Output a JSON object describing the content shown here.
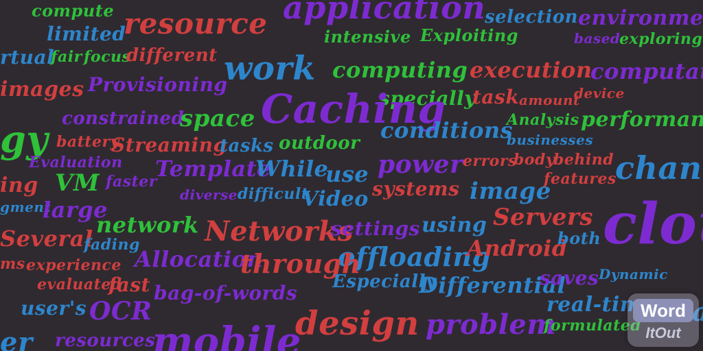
{
  "words": [
    {
      "text": "compute",
      "color": "green"
    },
    {
      "text": "resource",
      "color": "red"
    },
    {
      "text": "application",
      "color": "purple"
    },
    {
      "text": "selection",
      "color": "blue"
    },
    {
      "text": "environment",
      "color": "purple"
    },
    {
      "text": "limited",
      "color": "blue"
    },
    {
      "text": "intensive",
      "color": "green"
    },
    {
      "text": "Exploiting",
      "color": "green"
    },
    {
      "text": "based",
      "color": "purple"
    },
    {
      "text": "exploring",
      "color": "green"
    },
    {
      "text": "rtual",
      "color": "blue"
    },
    {
      "text": "fair",
      "color": "green"
    },
    {
      "text": "focus",
      "color": "green"
    },
    {
      "text": "different",
      "color": "red"
    },
    {
      "text": "work",
      "color": "blue"
    },
    {
      "text": "computing",
      "color": "green"
    },
    {
      "text": "execution",
      "color": "red"
    },
    {
      "text": "computation",
      "color": "purple"
    },
    {
      "text": "images",
      "color": "red"
    },
    {
      "text": "Provisioning",
      "color": "purple"
    },
    {
      "text": "specially",
      "color": "green"
    },
    {
      "text": "task",
      "color": "red"
    },
    {
      "text": "amount",
      "color": "red"
    },
    {
      "text": "device",
      "color": "red"
    },
    {
      "text": "Caching",
      "color": "purple"
    },
    {
      "text": "constrained",
      "color": "purple"
    },
    {
      "text": "space",
      "color": "green"
    },
    {
      "text": "conditions",
      "color": "blue"
    },
    {
      "text": "Analysis",
      "color": "green"
    },
    {
      "text": "performance",
      "color": "green"
    },
    {
      "text": "gy",
      "color": "green"
    },
    {
      "text": "battery",
      "color": "red"
    },
    {
      "text": "Streaming",
      "color": "red"
    },
    {
      "text": "tasks",
      "color": "blue"
    },
    {
      "text": "outdoor",
      "color": "green"
    },
    {
      "text": "businesses",
      "color": "blue"
    },
    {
      "text": "Evaluation",
      "color": "purple"
    },
    {
      "text": "Template",
      "color": "purple"
    },
    {
      "text": "While",
      "color": "blue"
    },
    {
      "text": "use",
      "color": "blue"
    },
    {
      "text": "power",
      "color": "purple"
    },
    {
      "text": "errors",
      "color": "red"
    },
    {
      "text": "body",
      "color": "red"
    },
    {
      "text": "behind",
      "color": "red"
    },
    {
      "text": "channel",
      "color": "blue"
    },
    {
      "text": "ing",
      "color": "red"
    },
    {
      "text": "VM",
      "color": "green"
    },
    {
      "text": "faster",
      "color": "purple"
    },
    {
      "text": "diverse",
      "color": "purple"
    },
    {
      "text": "difficult",
      "color": "blue"
    },
    {
      "text": "Video",
      "color": "blue"
    },
    {
      "text": "systems",
      "color": "red"
    },
    {
      "text": "image",
      "color": "blue"
    },
    {
      "text": "features",
      "color": "red"
    },
    {
      "text": "gment",
      "color": "blue"
    },
    {
      "text": "large",
      "color": "purple"
    },
    {
      "text": "network",
      "color": "green"
    },
    {
      "text": "Networks",
      "color": "red"
    },
    {
      "text": "settings",
      "color": "purple"
    },
    {
      "text": "using",
      "color": "blue"
    },
    {
      "text": "Servers",
      "color": "red"
    },
    {
      "text": "cloud",
      "color": "purple"
    },
    {
      "text": "Several",
      "color": "red"
    },
    {
      "text": "fading",
      "color": "blue"
    },
    {
      "text": "offloading",
      "color": "blue"
    },
    {
      "text": "Android",
      "color": "red"
    },
    {
      "text": "both",
      "color": "blue"
    },
    {
      "text": "ms",
      "color": "red"
    },
    {
      "text": "experience",
      "color": "red"
    },
    {
      "text": "Allocation",
      "color": "purple"
    },
    {
      "text": "through",
      "color": "red"
    },
    {
      "text": "Dynamic",
      "color": "blue"
    },
    {
      "text": "evaluated",
      "color": "red"
    },
    {
      "text": "fast",
      "color": "red"
    },
    {
      "text": "Especially",
      "color": "blue"
    },
    {
      "text": "Differential",
      "color": "blue"
    },
    {
      "text": "saves",
      "color": "purple"
    },
    {
      "text": "user's",
      "color": "blue"
    },
    {
      "text": "OCR",
      "color": "purple"
    },
    {
      "text": "bag-of-words",
      "color": "purple"
    },
    {
      "text": "real-time",
      "color": "blue"
    },
    {
      "text": "local",
      "color": "blue"
    },
    {
      "text": "design",
      "color": "red"
    },
    {
      "text": "problem",
      "color": "purple"
    },
    {
      "text": "formulated",
      "color": "green"
    },
    {
      "text": "er",
      "color": "blue"
    },
    {
      "text": "resources",
      "color": "purple"
    },
    {
      "text": "mobile",
      "color": "purple"
    }
  ],
  "colors": {
    "background": "#2f2a30",
    "green": "#2fc13a",
    "red": "#d23f3f",
    "purple": "#7d2bd1",
    "blue": "#2d86cc"
  },
  "logo": {
    "top": "Word",
    "bottom": "ItOut"
  }
}
